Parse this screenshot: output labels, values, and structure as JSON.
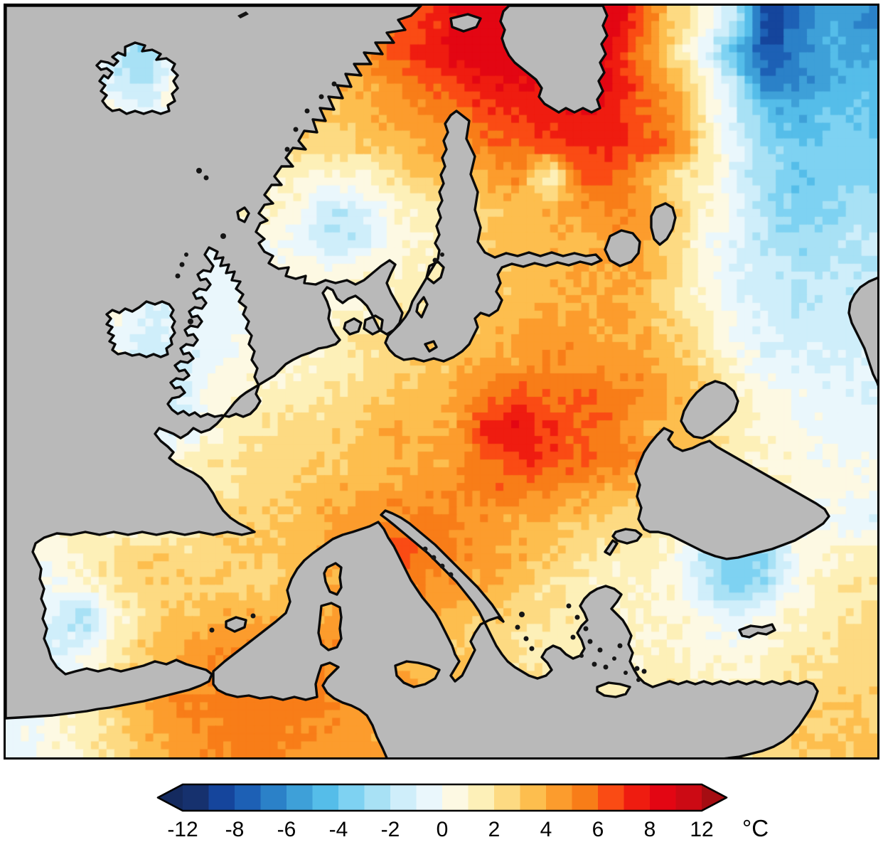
{
  "figure": {
    "kind": "temperature-anomaly-map"
  },
  "chart_data": {
    "type": "heatmap",
    "ocean_color": "#b9b9b9",
    "coastline_color": "#0a0a0a",
    "colorbar": {
      "orientation": "horizontal",
      "unit": "°C",
      "tick_labels": [
        "-12",
        "-8",
        "-6",
        "-4",
        "-2",
        "0",
        "2",
        "4",
        "6",
        "8",
        "12"
      ],
      "tick_values": [
        -12,
        -8,
        -6,
        -4,
        -2,
        0,
        2,
        4,
        6,
        8,
        12
      ],
      "levels": [
        -12,
        -10,
        -8,
        -7,
        -6,
        -5,
        -4,
        -3,
        -2,
        -1,
        0,
        1,
        2,
        3,
        4,
        5,
        6,
        7,
        8,
        10,
        12
      ],
      "colors": [
        "#16316e",
        "#15459c",
        "#1d60b5",
        "#2b81c8",
        "#3ea0d8",
        "#55bde9",
        "#7ed2f2",
        "#a8e1f5",
        "#cfeefa",
        "#eaf7fc",
        "#fdf9e3",
        "#fdf0b8",
        "#fdda82",
        "#fdbe4e",
        "#fc9c2d",
        "#f87d18",
        "#fa4b14",
        "#ef1c10",
        "#e30613",
        "#cc0a14"
      ],
      "under_arrow_color": "#142a5f",
      "over_arrow_color": "#a50d12"
    },
    "grid": {
      "nx": 28,
      "ny": 24,
      "x_range": [
        8,
        1234
      ],
      "y_range": [
        8,
        1065
      ],
      "values": [
        [
          2,
          2,
          2,
          2,
          2,
          2,
          2.5,
          3,
          3,
          3.5,
          4,
          5,
          6,
          7,
          8,
          9,
          9.5,
          10,
          9.5,
          9,
          6,
          3,
          0.5,
          -2,
          -9,
          -7,
          -5,
          -6
        ],
        [
          2,
          2,
          1,
          -2,
          -3.5,
          0,
          2,
          3,
          3,
          3.5,
          4,
          5,
          6,
          7.5,
          8.5,
          9,
          9.5,
          10,
          9.5,
          8,
          5,
          2,
          -1,
          -5,
          -8,
          -6,
          -5,
          -5
        ],
        [
          2,
          2,
          1,
          -1.5,
          -2.5,
          1,
          2,
          2.5,
          3,
          3.5,
          3.5,
          4,
          5,
          6,
          7,
          8,
          8,
          8.5,
          9,
          8,
          6,
          4,
          1,
          -2,
          -7,
          -6,
          -5,
          -4.5
        ],
        [
          2,
          2,
          1.5,
          0.5,
          -1,
          1,
          2,
          2,
          2.5,
          3,
          3,
          3.5,
          4.5,
          5,
          5.5,
          6.5,
          7,
          7.5,
          8,
          7.5,
          6,
          5,
          1,
          -1.5,
          -4,
          -5,
          -4,
          -4
        ],
        [
          2,
          2,
          2,
          1,
          0.5,
          1.5,
          2,
          2,
          2,
          2.5,
          2.5,
          3,
          3.5,
          4,
          5,
          5.5,
          6,
          6.5,
          7,
          7.5,
          6.5,
          5.5,
          2,
          -1,
          -3,
          -4,
          -3.5,
          -3.5
        ],
        [
          2,
          2,
          2,
          1.5,
          1,
          1.5,
          2,
          2,
          1.5,
          1,
          0.5,
          1,
          2,
          3,
          3,
          4,
          5,
          0.5,
          6,
          6.5,
          4,
          2,
          1,
          -1,
          -3,
          -4,
          -3.5,
          -3.5
        ],
        [
          2,
          2,
          2,
          2,
          1.5,
          1.5,
          1.5,
          1.5,
          1,
          0.5,
          -2,
          -1,
          0.5,
          1.5,
          2.5,
          3,
          3.5,
          4,
          4.5,
          5,
          5,
          3,
          1,
          -0.5,
          -2.5,
          -3.5,
          -3,
          -2.5
        ],
        [
          1.5,
          1.5,
          1.5,
          1,
          0,
          -1,
          -1,
          -0.5,
          0.5,
          -0.5,
          -2,
          -1.5,
          0.5,
          1,
          2,
          3,
          3.5,
          3.5,
          4,
          4.5,
          4.5,
          2.5,
          0.5,
          -1,
          -2.5,
          -3,
          -2.5,
          -2
        ],
        [
          1.5,
          1,
          1,
          0.5,
          -1,
          -1,
          -0.5,
          -0.5,
          0,
          0.5,
          0.5,
          1,
          1,
          1.5,
          2,
          3,
          3.5,
          3.5,
          4,
          4,
          4,
          2,
          0.5,
          -1,
          -1.5,
          -2,
          -2,
          -2
        ],
        [
          1,
          1,
          1,
          0,
          -1,
          -1,
          -0.5,
          -0.5,
          0.5,
          0.5,
          0.5,
          0.5,
          1.5,
          2,
          2.5,
          3,
          3.5,
          4,
          4,
          4,
          3.5,
          2,
          1,
          -0.5,
          -1.5,
          -2,
          -1.5,
          -1.5
        ],
        [
          1,
          1,
          0.5,
          0,
          -1.5,
          -1,
          -0.5,
          0,
          0.5,
          1,
          1.5,
          2,
          2.5,
          3,
          3,
          3.5,
          4,
          4.5,
          4.5,
          4,
          4,
          3,
          1.5,
          0,
          -1,
          -1.5,
          -1.5,
          -1.5
        ],
        [
          0.5,
          0.5,
          0.5,
          0,
          -1.5,
          -1.5,
          -0.5,
          0.5,
          0.5,
          1,
          1.5,
          2,
          2.5,
          3,
          3.5,
          4,
          4.5,
          5,
          5,
          4.5,
          4.5,
          3.5,
          2,
          0.5,
          -0.5,
          -1,
          -1,
          -1
        ],
        [
          0.5,
          0.5,
          0.5,
          0.5,
          -1,
          -1.5,
          0,
          1,
          1.5,
          1.5,
          2,
          2.5,
          3,
          3.5,
          4,
          5.5,
          6.5,
          6,
          6,
          5.5,
          5,
          4,
          3,
          1.5,
          0.5,
          0,
          -0.5,
          -1
        ],
        [
          0.5,
          1,
          1,
          1,
          -0.5,
          -1.5,
          0.5,
          1.5,
          2,
          2.5,
          2.5,
          3,
          4.5,
          3.5,
          4.5,
          7.5,
          8,
          7,
          6,
          5.5,
          4,
          3.5,
          3,
          1,
          0.5,
          0,
          -0.5,
          -0.5
        ],
        [
          1,
          1.5,
          1.5,
          1.5,
          0.5,
          1,
          1.5,
          2,
          2.5,
          2.5,
          3,
          3.5,
          3.5,
          4,
          4.5,
          6,
          7,
          6.5,
          6,
          5.5,
          5,
          4.5,
          3,
          1.5,
          1,
          0.5,
          0,
          0
        ],
        [
          1,
          1.5,
          2,
          2,
          1.5,
          1.5,
          1.5,
          2,
          2.5,
          3,
          3.5,
          4,
          4.5,
          4.5,
          5,
          5.5,
          5.5,
          5,
          4.5,
          4,
          3.5,
          3,
          2.5,
          1.5,
          1,
          0.5,
          0.5,
          0.5
        ],
        [
          1.5,
          2,
          1.5,
          0,
          0,
          1,
          2.5,
          3,
          3,
          3.5,
          4,
          4.5,
          5,
          5.5,
          5,
          4.5,
          4,
          3.5,
          3,
          2.5,
          2,
          1.5,
          0.5,
          -0.5,
          0,
          0.5,
          -0.5,
          -1
        ],
        [
          0.5,
          0,
          1.5,
          2.5,
          3,
          2.5,
          2.5,
          3,
          3,
          3.5,
          4,
          5,
          7,
          5.5,
          5,
          4.5,
          4,
          3,
          2,
          1.5,
          1.5,
          0.5,
          -2,
          -4.5,
          -3,
          0,
          1,
          1.5
        ],
        [
          0.5,
          0,
          0.5,
          2,
          2.5,
          3,
          3,
          2.5,
          3,
          3.5,
          4,
          4.5,
          6,
          5,
          4.5,
          4,
          3,
          2,
          1.5,
          1,
          1,
          0.5,
          -2,
          -3.5,
          -2.5,
          0.5,
          1.5,
          2
        ],
        [
          -0.5,
          -1,
          -3,
          0.5,
          2.5,
          3,
          3.5,
          4,
          4,
          4,
          4,
          4.5,
          4.5,
          4,
          3.5,
          3,
          2.5,
          2,
          1.5,
          1,
          1,
          1,
          0,
          -1,
          0.5,
          1,
          1.5,
          2
        ],
        [
          -1,
          -1.5,
          -0.5,
          1.5,
          3,
          4,
          4.5,
          5,
          5,
          5,
          5,
          4.5,
          4,
          3.5,
          3,
          2.5,
          2,
          1.5,
          1,
          1,
          1,
          1,
          0.5,
          0.5,
          1,
          1.5,
          2,
          2.5
        ],
        [
          -0.5,
          -0.5,
          0.5,
          2,
          3.5,
          4.5,
          5,
          5.5,
          5.5,
          5.5,
          5,
          5,
          4.5,
          4,
          3.5,
          3,
          2.5,
          2,
          1.5,
          1.5,
          1.5,
          1.5,
          1,
          1,
          1.5,
          2,
          2.5,
          3
        ],
        [
          0,
          0.5,
          1,
          2.5,
          4,
          5,
          5.5,
          5.5,
          5.5,
          5.5,
          5,
          4.5,
          4.5,
          4,
          3.5,
          3,
          2.5,
          2,
          2,
          2,
          2,
          2,
          1.5,
          1.5,
          2,
          2.5,
          3,
          3
        ],
        [
          -0.5,
          0.5,
          1.5,
          2.5,
          3.5,
          4.5,
          5,
          5.5,
          5.5,
          5,
          4.5,
          4.5,
          4,
          3.5,
          3,
          3,
          2.5,
          2.5,
          2,
          2,
          2,
          2,
          2,
          2,
          2.5,
          3,
          3,
          3.5
        ]
      ]
    }
  }
}
